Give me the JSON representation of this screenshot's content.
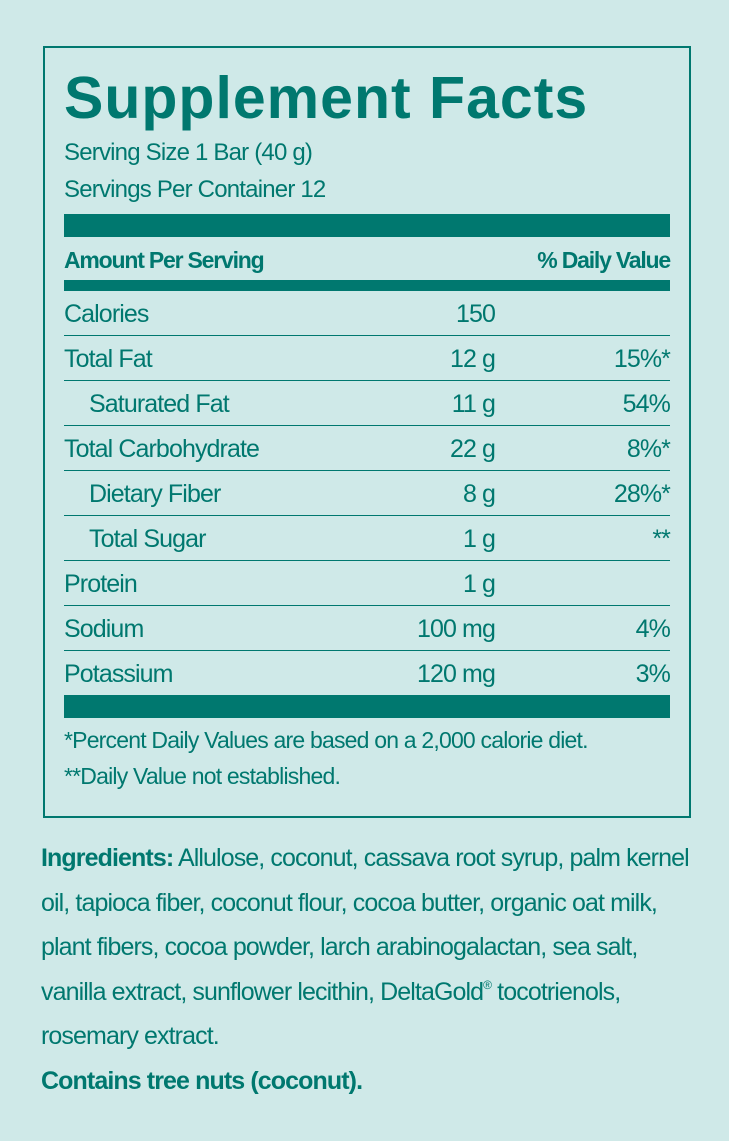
{
  "colors": {
    "background": "#cfe9e8",
    "accent": "#00786f"
  },
  "panel": {
    "title": "Supplement Facts",
    "serving_size": "Serving Size 1 Bar (40 g)",
    "servings_per_container": "Servings Per Container 12",
    "header_left": "Amount Per Serving",
    "header_right": "% Daily Value",
    "rows": [
      {
        "label": "Calories",
        "amount": "150",
        "dv": ""
      },
      {
        "label": "Total Fat",
        "amount": "12 g",
        "dv": "15%*"
      },
      {
        "label": "Saturated Fat",
        "amount": "11 g",
        "dv": "54%"
      },
      {
        "label": "Total Carbohydrate",
        "amount": "22 g",
        "dv": "8%*"
      },
      {
        "label": "Dietary Fiber",
        "amount": "8 g",
        "dv": "28%*"
      },
      {
        "label": "Total Sugar",
        "amount": "1 g",
        "dv": "**"
      },
      {
        "label": "Protein",
        "amount": "1 g",
        "dv": ""
      },
      {
        "label": "Sodium",
        "amount": "100 mg",
        "dv": "4%"
      },
      {
        "label": "Potassium",
        "amount": "120 mg",
        "dv": "3%"
      }
    ],
    "footnote1": "*Percent Daily Values are based on a 2,000 calorie diet.",
    "footnote2": "**Daily Value not established."
  },
  "ingredients": {
    "label": "Ingredients:",
    "text": " Allulose, coconut, cassava root syrup, palm kernel oil, tapioca fiber, coconut flour, cocoa butter, organic oat milk, plant fibers, cocoa powder, larch arabinogalactan, sea salt, vanilla extract, sunflower lecithin, DeltaGold",
    "registered": "®",
    "text_end": " tocotrienols, rosemary extract.",
    "allergen": "Contains tree nuts (coconut)."
  }
}
